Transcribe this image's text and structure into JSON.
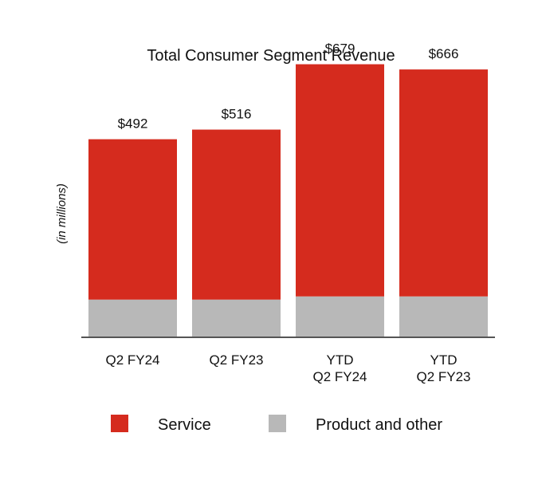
{
  "chart_data": {
    "type": "bar",
    "stacked": true,
    "title": "Total Consumer Segment Revenue",
    "xlabel": "",
    "ylabel": "(in millions)",
    "ylim": [
      0,
      700
    ],
    "grid": false,
    "categories": [
      [
        "Q2 FY24"
      ],
      [
        "Q2 FY23"
      ],
      [
        "YTD",
        "Q2 FY24"
      ],
      [
        "YTD",
        "Q2 FY23"
      ]
    ],
    "series": [
      {
        "name": "Product and other",
        "color": "#b8b8b8",
        "values": [
          92,
          92,
          100,
          100
        ]
      },
      {
        "name": "Service",
        "color": "#d52b1e",
        "values": [
          400,
          424,
          579,
          566
        ]
      }
    ],
    "totals": [
      492,
      516,
      679,
      666
    ],
    "total_labels": [
      "$492",
      "$516",
      "$679",
      "$666"
    ],
    "legend_position": "bottom"
  }
}
